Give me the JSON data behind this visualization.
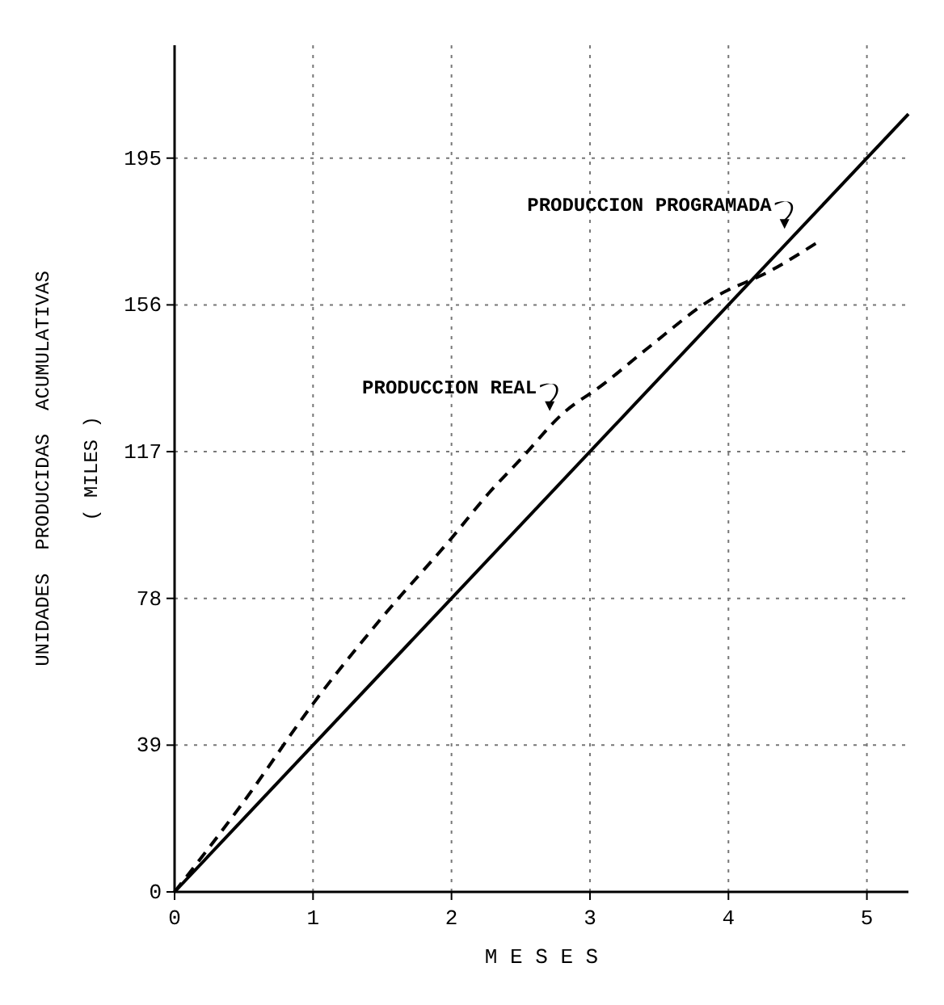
{
  "chart_data": {
    "type": "line",
    "xlabel": "M E S E S",
    "ylabel": "UNIDADES  PRODUCIDAS  ACUMULATIVAS\n( MILES )",
    "xlim": [
      0,
      5.3
    ],
    "ylim": [
      0,
      225
    ],
    "xticks": [
      0,
      1,
      2,
      3,
      4,
      5
    ],
    "yticks": [
      0,
      39,
      78,
      117,
      156,
      195
    ],
    "grid": true,
    "legend": "top right",
    "series": [
      {
        "name": "PRODUCCION PROGRAMADA",
        "color": "#000000",
        "line_style": "solid",
        "x": [
          0,
          5.3
        ],
        "values": [
          0,
          206.7
        ]
      },
      {
        "name": "PRODUCCION REAL",
        "color": "#000000",
        "line_style": "dashed",
        "x": [
          0,
          0.5,
          1,
          1.5,
          2,
          2.27,
          2.5,
          2.8,
          3.1,
          3.4,
          3.9,
          4.3,
          4.66
        ],
        "values": [
          0,
          24,
          50,
          73,
          94,
          106,
          115,
          127,
          135,
          144,
          158,
          165,
          173
        ]
      }
    ]
  }
}
